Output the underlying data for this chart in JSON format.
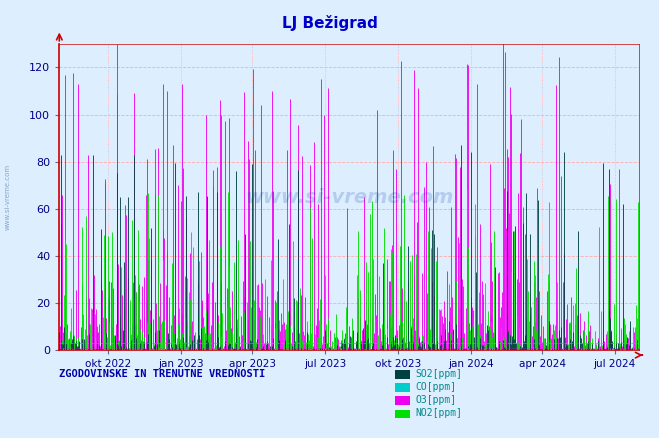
{
  "title": "LJ Bežigrad",
  "title_color": "#0000cc",
  "title_fontsize": 11,
  "bg_color": "#ddeeff",
  "plot_bg_color": "#ddeeff",
  "ylim": [
    0,
    130
  ],
  "yticks": [
    0,
    20,
    40,
    60,
    80,
    100,
    120
  ],
  "n_days": 730,
  "so2_color": "#004040",
  "co_color": "#00cccc",
  "o3_color": "#ee00ee",
  "no2_color": "#00dd00",
  "grid_h_color": "#ffaaaa",
  "grid_v_color": "#ffaaaa",
  "axis_color": "#cc0000",
  "tick_label_color": "#000088",
  "legend_label_color": "#008888",
  "bottom_text": "ZGODOVINSKE IN TRENUTNE VREDNOSTI",
  "bottom_text_color": "#0000aa",
  "watermark": "www.si-vreme.com",
  "xtick_labels": [
    "okt 2022",
    "jan 2023",
    "apr 2023",
    "jul 2023",
    "okt 2023",
    "jan 2024",
    "apr 2024",
    "jul 2024"
  ],
  "xtick_day_positions": [
    61,
    153,
    243,
    335,
    426,
    518,
    608,
    699
  ],
  "legend_items": [
    {
      "label": "SO2[ppm]",
      "color": "#004040"
    },
    {
      "label": "CO[ppm]",
      "color": "#00cccc"
    },
    {
      "label": "O3[ppm]",
      "color": "#ee00ee"
    },
    {
      "label": "NO2[ppm]",
      "color": "#00dd00"
    }
  ],
  "figsize": [
    6.59,
    4.38
  ],
  "dpi": 100
}
